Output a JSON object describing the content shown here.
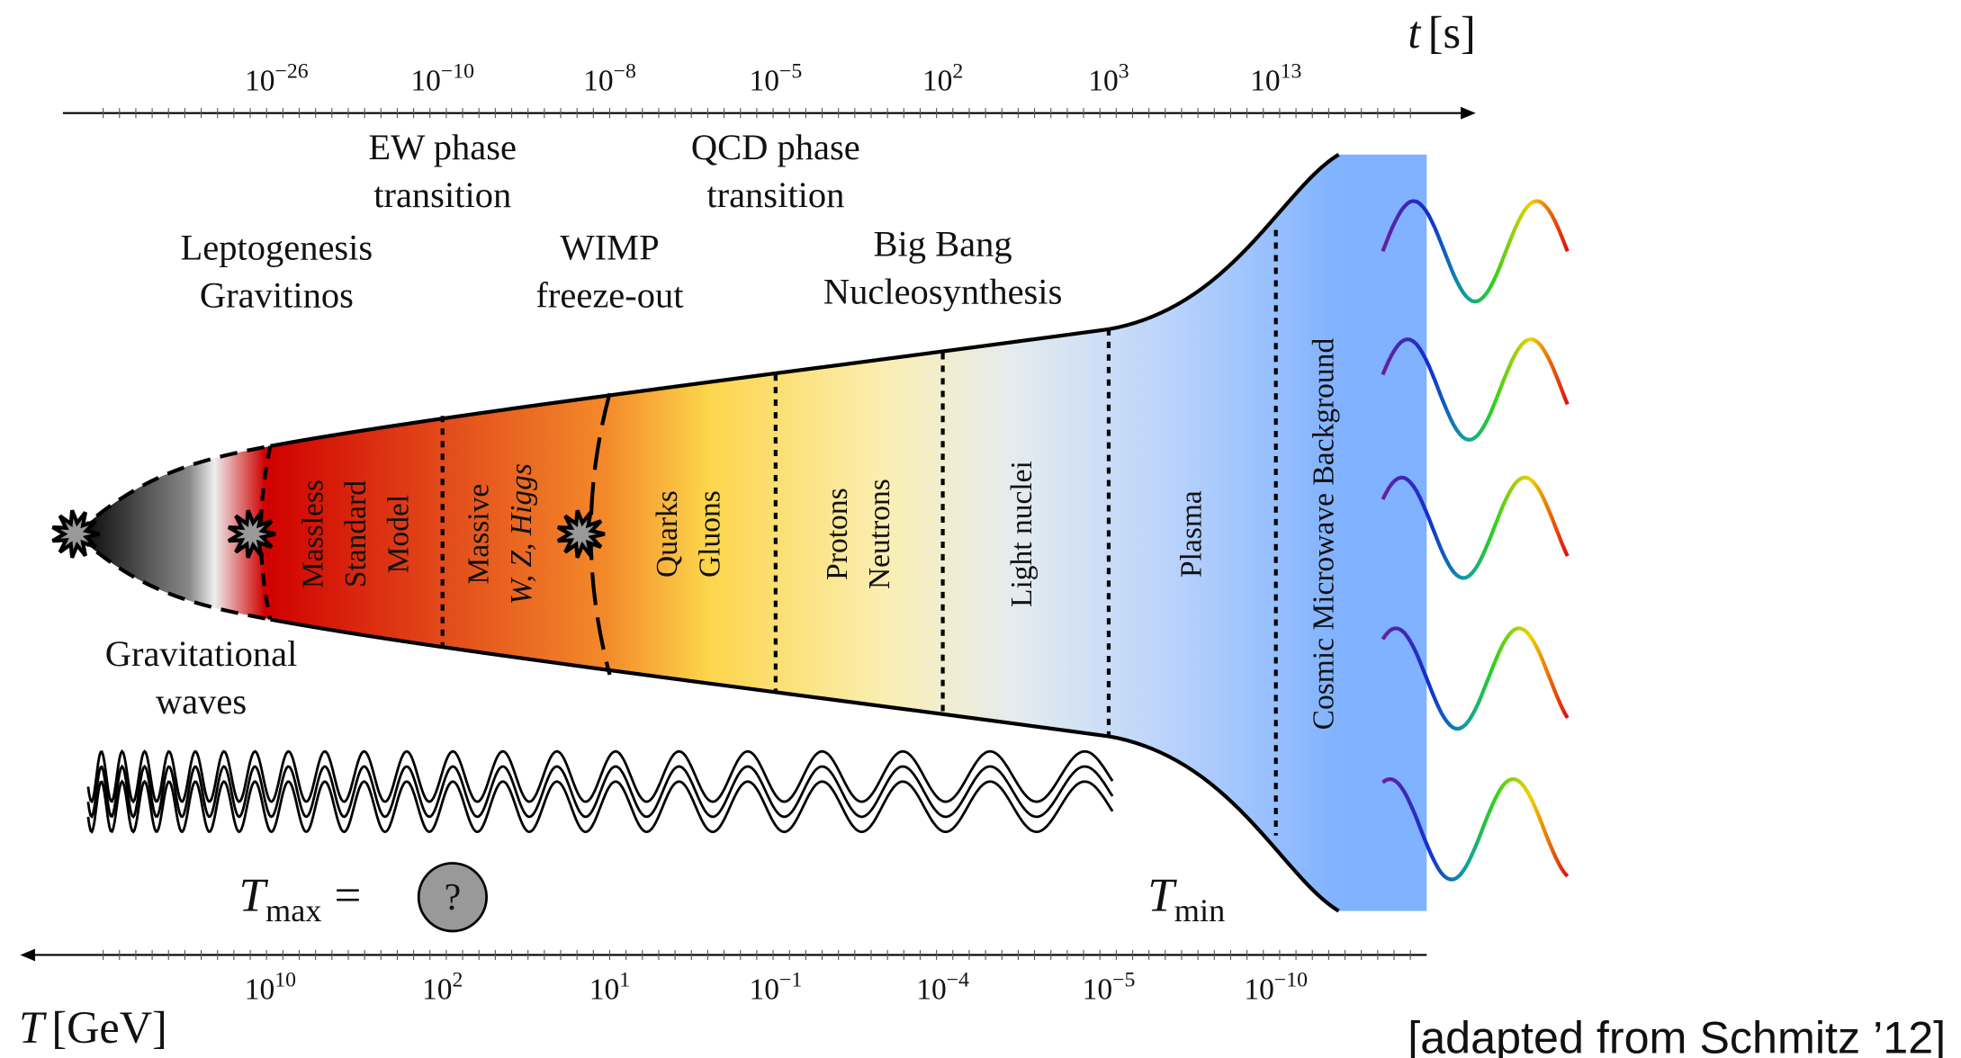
{
  "time_axis": {
    "symbol": "t",
    "unit": "[s]",
    "ticks": [
      {
        "base": "10",
        "exponent": "−26"
      },
      {
        "base": "10",
        "exponent": "−10"
      },
      {
        "base": "10",
        "exponent": "−8"
      },
      {
        "base": "10",
        "exponent": "−5"
      },
      {
        "base": "10",
        "exponent": "2"
      },
      {
        "base": "10",
        "exponent": "3"
      },
      {
        "base": "10",
        "exponent": "13"
      }
    ]
  },
  "temperature_axis": {
    "symbol": "T",
    "unit": "[GeV]",
    "ticks": [
      {
        "base": "10",
        "exponent": "10"
      },
      {
        "base": "10",
        "exponent": "2"
      },
      {
        "base": "10",
        "exponent": "1"
      },
      {
        "base": "10",
        "exponent": "−1"
      },
      {
        "base": "10",
        "exponent": "−4"
      },
      {
        "base": "10",
        "exponent": "−5"
      },
      {
        "base": "10",
        "exponent": "−10"
      }
    ]
  },
  "events": [
    {
      "lines": [
        "EW phase",
        "transition"
      ]
    },
    {
      "lines": [
        "QCD phase",
        "transition"
      ]
    },
    {
      "lines": [
        "Leptogenesis",
        "Gravitinos"
      ]
    },
    {
      "lines": [
        "WIMP",
        "freeze-out"
      ]
    },
    {
      "lines": [
        "Big Bang",
        "Nucleosynthesis"
      ]
    },
    {
      "lines": [
        "Gravitational",
        "waves"
      ]
    }
  ],
  "eras": [
    {
      "lines": [
        "Massless",
        "Standard",
        "Model"
      ]
    },
    {
      "lines": [
        "Massive",
        "W, Z, Higgs"
      ]
    },
    {
      "lines": [
        "Quarks",
        "Gluons"
      ]
    },
    {
      "lines": [
        "Protons",
        "Neutrons"
      ]
    },
    {
      "lines": [
        "Light nuclei"
      ]
    },
    {
      "lines": [
        "Plasma"
      ]
    },
    {
      "lines": [
        "Cosmic Microwave Background"
      ]
    }
  ],
  "t_max": {
    "symbol": "T",
    "subscript": "max",
    "relation": "=",
    "value": "?"
  },
  "t_min": {
    "symbol": "T",
    "subscript": "min"
  },
  "credit": "[adapted from Schmitz ’12]"
}
